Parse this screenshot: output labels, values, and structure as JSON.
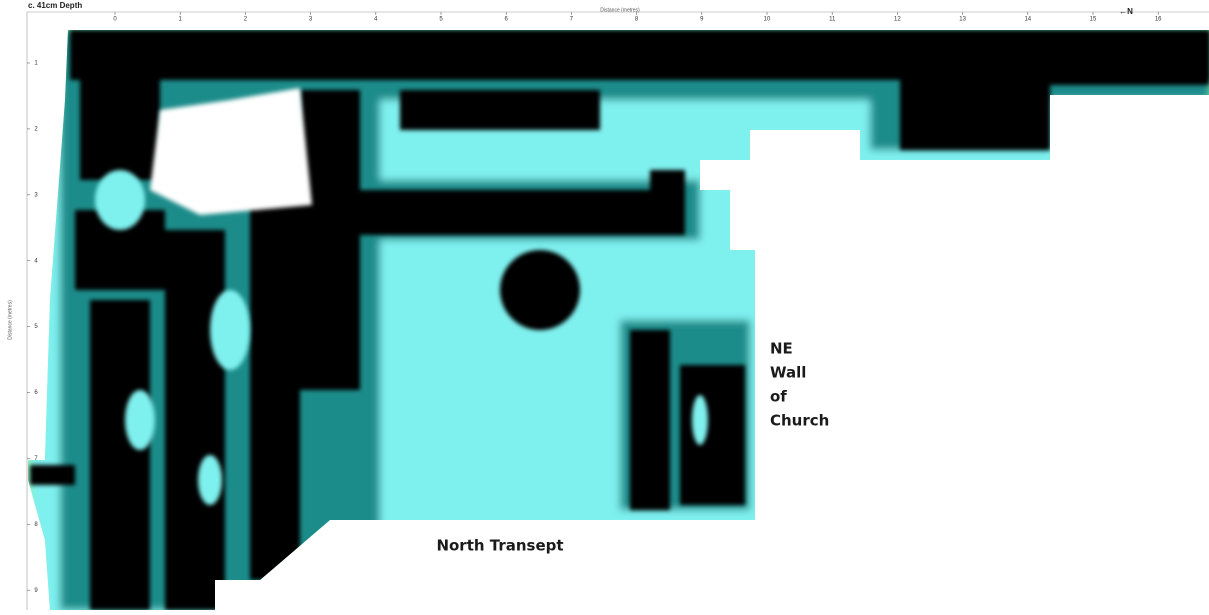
{
  "header": {
    "title": "c. 41cm Depth",
    "north": "←N"
  },
  "axes": {
    "x": {
      "label": "Distance (metres)",
      "ticks": [
        0,
        1,
        2,
        3,
        4,
        5,
        6,
        7,
        8,
        9,
        10,
        11,
        12,
        13,
        14,
        15,
        16
      ]
    },
    "y": {
      "label": "Distance (metres)",
      "ticks": [
        1,
        2,
        3,
        4,
        5,
        6,
        7,
        8,
        9
      ]
    }
  },
  "annotations": {
    "wall": [
      "NE",
      "Wall",
      "of",
      "Church"
    ],
    "transept": "North Transept"
  }
}
